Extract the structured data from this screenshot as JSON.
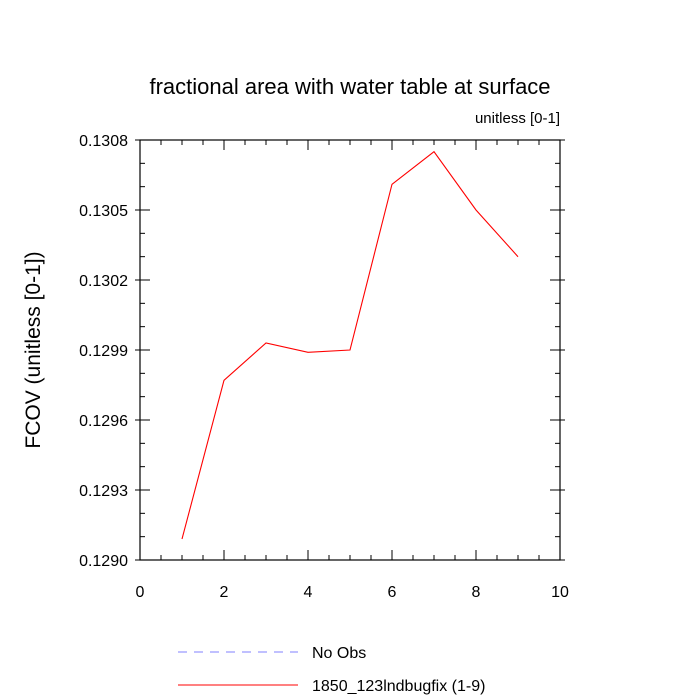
{
  "chart_data": {
    "type": "line",
    "title": "fractional area with water table at surface",
    "subtitle": "unitless [0-1]",
    "ylabel": "FCOV  (unitless [0-1])",
    "xlabel": "",
    "xlim": [
      0,
      10
    ],
    "ylim": [
      0.129,
      0.1308
    ],
    "x_ticks": [
      "0",
      "2",
      "4",
      "6",
      "8",
      "10"
    ],
    "y_ticks": [
      "0.1290",
      "0.1293",
      "0.1296",
      "0.1299",
      "0.1302",
      "0.1305",
      "0.1308"
    ],
    "grid": false,
    "legend_position": "bottom",
    "series": [
      {
        "name": "No Obs",
        "color": "#8080ff",
        "dash": "dashed",
        "x": [],
        "values": []
      },
      {
        "name": "1850_123lndbugfix (1-9)",
        "color": "#ff0000",
        "dash": "solid",
        "x": [
          1,
          2,
          3,
          4,
          5,
          6,
          7,
          8,
          9
        ],
        "values": [
          0.12909,
          0.12977,
          0.12993,
          0.12989,
          0.1299,
          0.13061,
          0.13075,
          0.1305,
          0.1303
        ]
      }
    ]
  }
}
